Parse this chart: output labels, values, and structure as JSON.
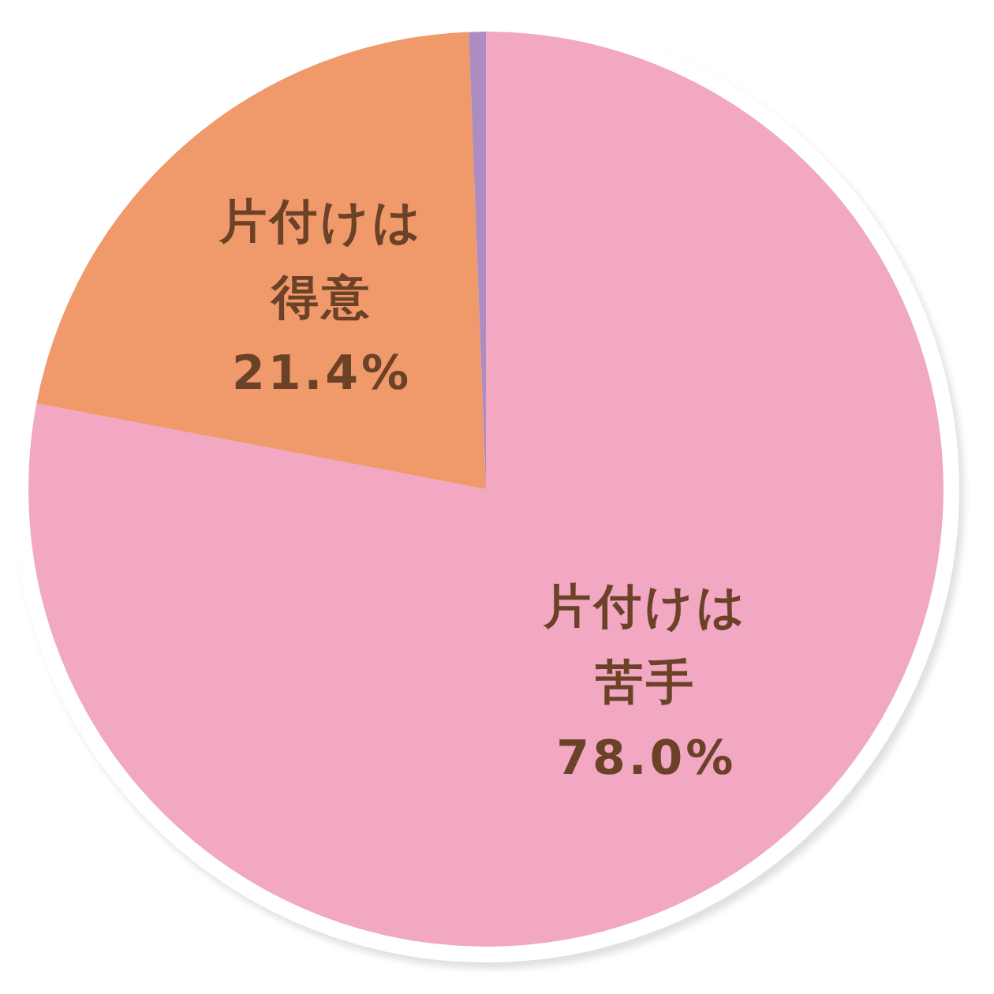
{
  "chart_data": {
    "type": "pie",
    "categories": [
      "片付けは苦手",
      "片付けは得意",
      null
    ],
    "values": [
      78.0,
      21.4,
      0.6
    ],
    "colors": [
      "#f2a7c3",
      "#f0996b",
      "#ad8cc2"
    ],
    "value_labels": [
      "78.0%",
      "21.4%",
      null
    ]
  }
}
